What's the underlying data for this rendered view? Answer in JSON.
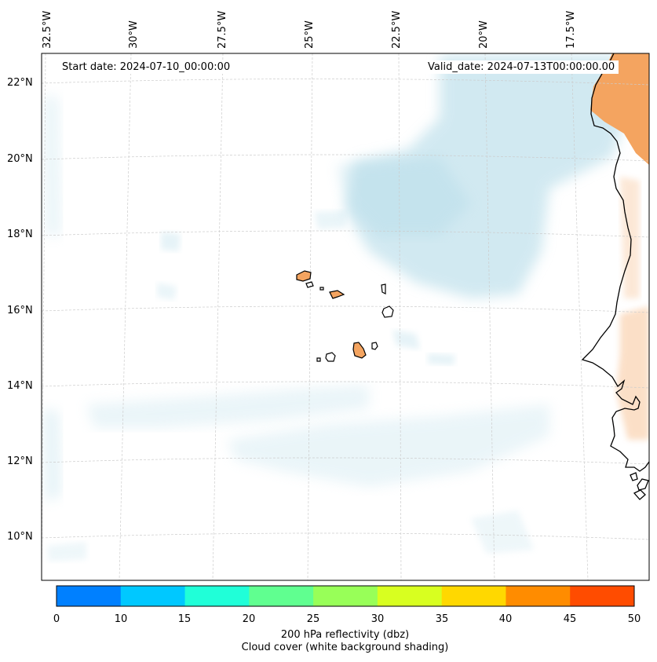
{
  "map": {
    "start_date": "Start date: 2024-07-10_00:00:00",
    "valid_date": "Valid_date: 2024-07-13T00:00:00.00",
    "lon_labels": [
      "32.5°W",
      "30°W",
      "27.5°W",
      "25°W",
      "22.5°W",
      "20°W",
      "17.5°W"
    ],
    "lat_labels": [
      "22°N",
      "20°N",
      "18°N",
      "16°N",
      "14°N",
      "12°N",
      "10°N"
    ],
    "land_color": "#000000",
    "grid_color": "#cccccc",
    "cloud_color": "#add8e6",
    "reflectivity_fill_color": "#f4a460"
  },
  "colorbar": {
    "ticks": [
      "0",
      "10",
      "15",
      "20",
      "25",
      "30",
      "35",
      "40",
      "45",
      "50"
    ],
    "colors": [
      "#0080ff",
      "#00c8ff",
      "#20ffd8",
      "#60ff90",
      "#98ff58",
      "#d8ff20",
      "#ffd800",
      "#ff8c00",
      "#ff4c00"
    ],
    "title_line1": "200 hPa reflectivity (dbz)",
    "title_line2": "Cloud cover (white background shading)"
  }
}
